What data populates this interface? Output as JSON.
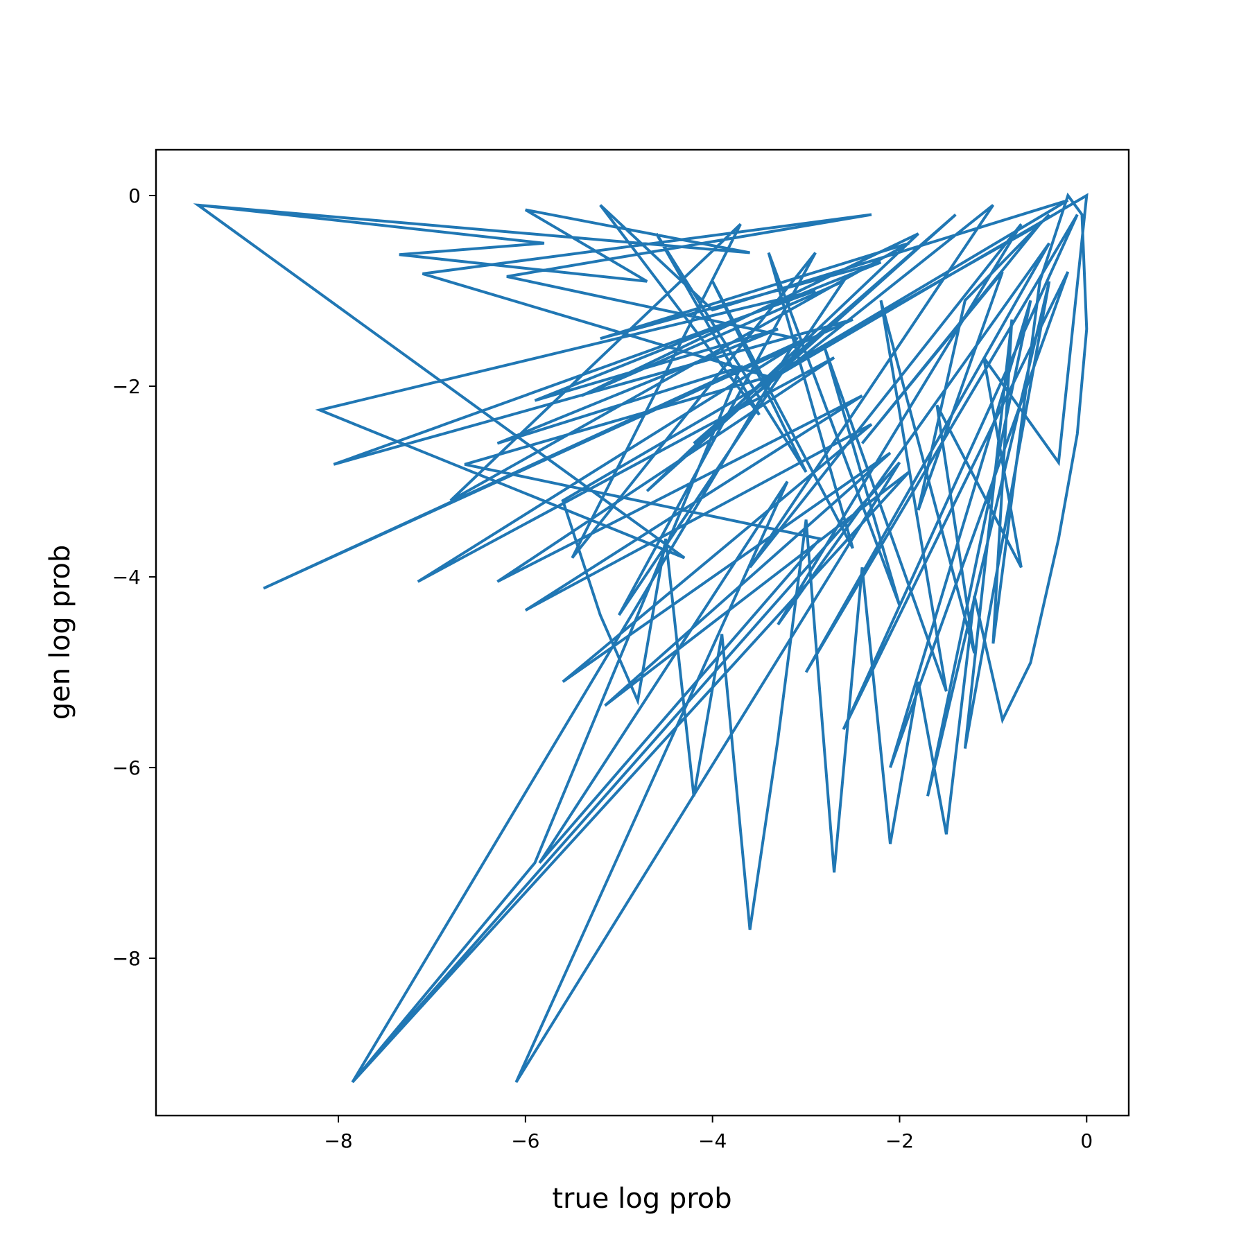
{
  "chart_data": {
    "type": "line",
    "title": "",
    "xlabel": "true log prob",
    "ylabel": "gen log prob",
    "xlim": [
      -9.95,
      0.45
    ],
    "ylim": [
      -9.65,
      0.48
    ],
    "xticks": [
      -8,
      -6,
      -4,
      -2,
      0
    ],
    "xtick_labels": [
      "−8",
      "−6",
      "−4",
      "−2",
      "0"
    ],
    "yticks": [
      0,
      -2,
      -4,
      -6,
      -8
    ],
    "ytick_labels": [
      "0",
      "−2",
      "−4",
      "−6",
      "−8"
    ],
    "grid": false,
    "legend": false,
    "line_color": "#2077b4",
    "series": [
      {
        "x": [
          -9.5,
          -5.8,
          -7.35,
          -4.7,
          -6.0,
          -3.6,
          -9.5,
          -4.3,
          -8.2,
          -2.9,
          -8.05,
          -2.5,
          -8.8,
          -3.0,
          -7.15,
          -2.7,
          -6.3,
          -2.4,
          -6.0,
          -2.3,
          -5.6,
          -2.1,
          -5.15,
          -1.9,
          -7.85,
          -2.0,
          -6.1,
          -3.2,
          -5.85,
          -2.85,
          -6.65,
          -3.4,
          -7.1,
          -2.3,
          -6.2,
          -3.1,
          -7.85,
          -5.9,
          -3.7,
          -6.3,
          -3.3,
          -5.9,
          -2.2,
          -5.2,
          -1.9,
          -6.8,
          -3.7,
          -5.5,
          -2.9,
          -5.0,
          -2.6,
          -5.4,
          -1.8,
          -4.7,
          -1.4,
          -4.2,
          -1.0,
          -3.6,
          -0.7,
          -3.3,
          -0.4,
          -3.0,
          -0.1,
          -2.6,
          -0.2,
          -2.1,
          -0.6,
          -1.7,
          -0.4,
          -1.3,
          -0.8,
          -1.0,
          -0.5,
          -0.2,
          -0.05,
          -0.0,
          -0.1,
          -0.3,
          -0.6,
          -0.9,
          -1.2,
          -1.5,
          -1.8,
          -2.1,
          -2.4,
          -2.7,
          -3.0,
          -3.3,
          -3.6,
          -3.9,
          -4.2,
          -4.5,
          -4.8,
          -5.2,
          -5.6,
          -0.0,
          -0.3,
          -1.1,
          -0.7,
          -1.6,
          -1.2,
          -2.2,
          -1.5,
          -2.8,
          -2.0,
          -3.4,
          -2.5,
          -4.0,
          -3.0,
          -4.6,
          -3.5,
          -5.2,
          -4.0,
          -0.2,
          -3.2,
          -0.5,
          -2.4,
          -0.9,
          -1.8,
          -1.3,
          -0.4
        ],
        "y": [
          -0.1,
          -0.5,
          -0.62,
          -0.9,
          -0.15,
          -0.6,
          -0.1,
          -3.8,
          -2.25,
          -1.0,
          -2.82,
          -1.3,
          -4.12,
          -1.5,
          -4.05,
          -1.7,
          -4.05,
          -2.1,
          -4.35,
          -2.4,
          -5.1,
          -2.7,
          -5.35,
          -2.9,
          -9.3,
          -2.8,
          -9.3,
          -3.0,
          -7.0,
          -3.6,
          -2.82,
          -1.9,
          -0.82,
          -0.2,
          -0.85,
          -1.5,
          -9.3,
          -7.0,
          -1.8,
          -2.6,
          -1.4,
          -2.15,
          -0.7,
          -1.5,
          -0.5,
          -3.2,
          -0.3,
          -3.8,
          -0.6,
          -4.4,
          -0.9,
          -2.1,
          -0.4,
          -3.1,
          -0.2,
          -2.6,
          -0.1,
          -3.9,
          -0.3,
          -4.5,
          -0.5,
          -5.0,
          -0.2,
          -5.6,
          -0.8,
          -6.0,
          -1.1,
          -6.3,
          -0.9,
          -5.8,
          -1.3,
          -4.7,
          -0.9,
          -0.0,
          -0.2,
          -1.4,
          -2.5,
          -3.6,
          -4.9,
          -5.5,
          -4.2,
          -6.7,
          -5.1,
          -6.8,
          -3.9,
          -7.1,
          -3.4,
          -5.7,
          -7.7,
          -4.6,
          -6.3,
          -3.6,
          -5.3,
          -4.4,
          -3.2,
          -0.0,
          -2.8,
          -1.7,
          -3.9,
          -2.2,
          -4.8,
          -1.1,
          -5.2,
          -1.6,
          -4.3,
          -0.6,
          -3.7,
          -0.9,
          -2.9,
          -0.4,
          -2.3,
          -0.1,
          -1.2,
          -0.05,
          -1.8,
          -0.3,
          -2.6,
          -0.8,
          -3.3,
          -1.1,
          -0.2
        ]
      }
    ]
  }
}
